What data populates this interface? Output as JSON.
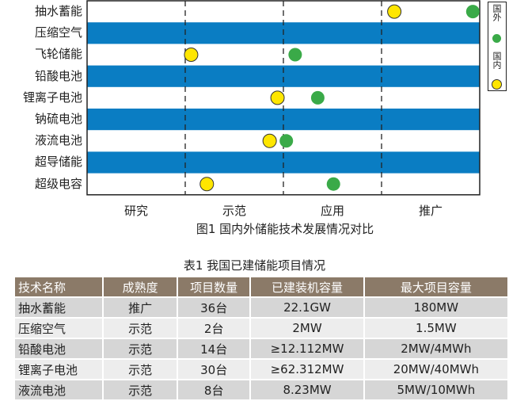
{
  "chart_data": {
    "type": "scatter",
    "categories": [
      "抽水蓄能",
      "压缩空气",
      "飞轮储能",
      "铅酸电池",
      "锂离子电池",
      "钠硫电池",
      "液流电池",
      "超导储能",
      "超级电容"
    ],
    "stages": [
      "研究",
      "示范",
      "应用",
      "推广"
    ],
    "xlim": [
      0,
      4
    ],
    "series": [
      {
        "name": "国内",
        "color": "#ffe600",
        "points": [
          {
            "category": "抽水蓄能",
            "x": 3.13
          },
          {
            "category": "飞轮储能",
            "x": 1.06
          },
          {
            "category": "锂离子电池",
            "x": 1.94
          },
          {
            "category": "液流电池",
            "x": 1.86
          },
          {
            "category": "超级电容",
            "x": 1.22
          }
        ]
      },
      {
        "name": "国外",
        "color": "#3aaa48",
        "points": [
          {
            "category": "抽水蓄能",
            "x": 3.93
          },
          {
            "category": "飞轮储能",
            "x": 2.12
          },
          {
            "category": "锂离子电池",
            "x": 2.35
          },
          {
            "category": "液流电池",
            "x": 2.03
          },
          {
            "category": "超级电容",
            "x": 2.51
          }
        ]
      }
    ],
    "band_color": "#0a7dc3",
    "legend": "right",
    "title": "图1  国内外储能技术发展情况对比"
  },
  "table": {
    "title": "表1  我国已建储能项目情况",
    "headers": [
      "技术名称",
      "成熟度",
      "项目数量",
      "已建装机容量",
      "最大项目容量"
    ],
    "rows": [
      [
        "抽水蓄能",
        "推广",
        "36台",
        "22.1GW",
        "180MW"
      ],
      [
        "压缩空气",
        "示范",
        "2台",
        "2MW",
        "1.5MW"
      ],
      [
        "铅酸电池",
        "示范",
        "14台",
        "≥12.112MW",
        "2MW/4MWh"
      ],
      [
        "锂离子电池",
        "示范",
        "30台",
        "≥62.312MW",
        "20MW/40MWh"
      ],
      [
        "液流电池",
        "示范",
        "8台",
        "8.23MW",
        "5MW/10MWh"
      ]
    ]
  }
}
